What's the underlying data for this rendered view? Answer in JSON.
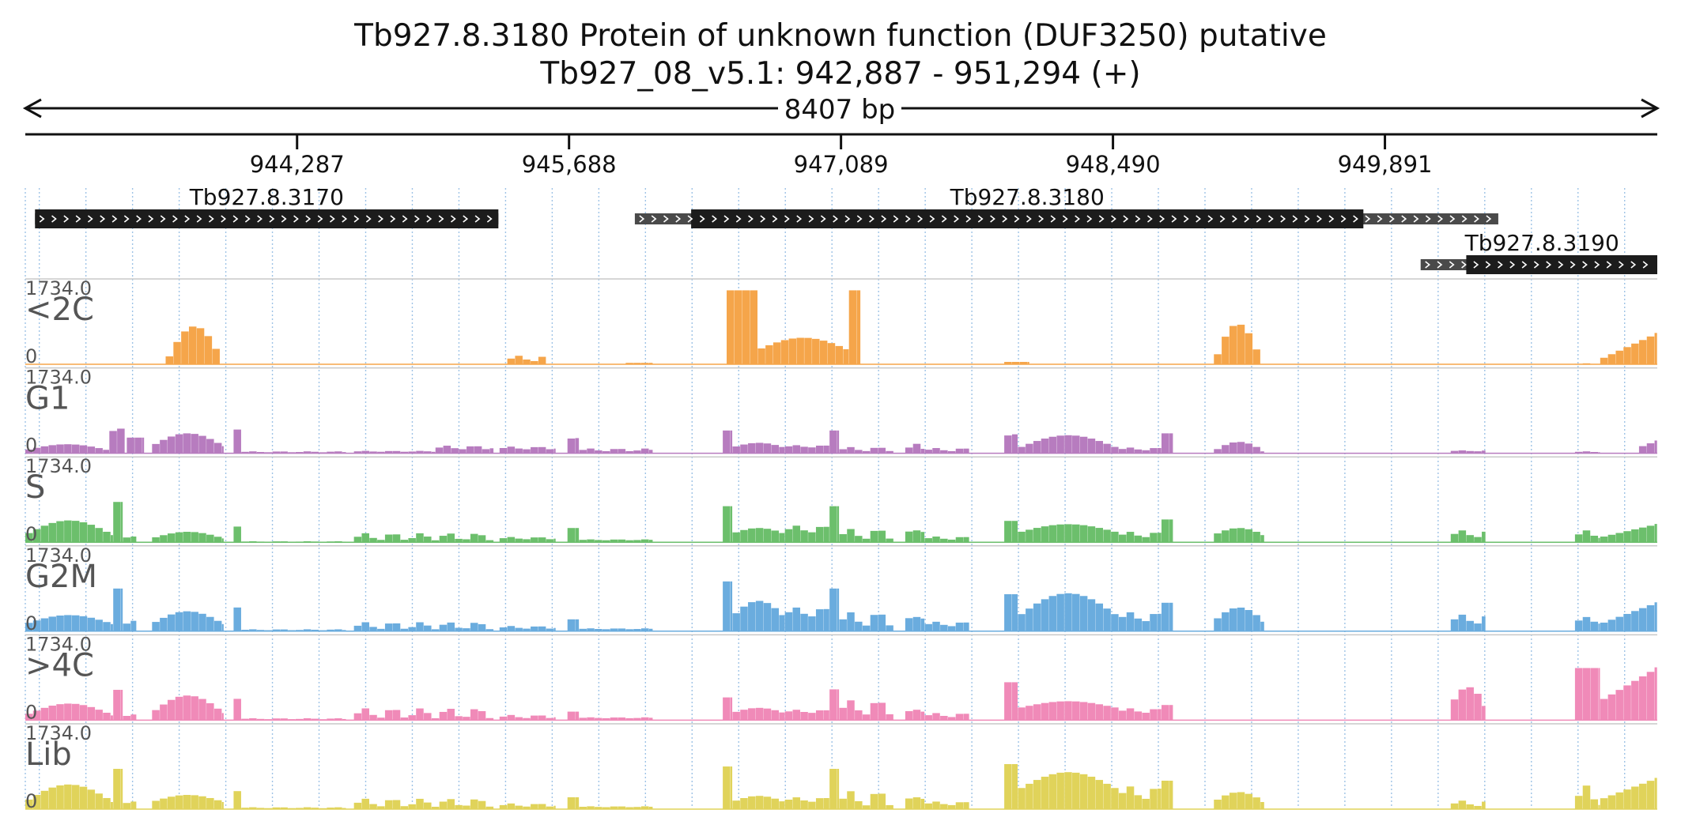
{
  "header": {
    "title": "Tb927.8.3180  Protein of unknown function (DUF3250)  putative",
    "location": "Tb927_08_v5.1: 942,887 - 951,294 (+)",
    "span_label": "8407 bp"
  },
  "ruler": {
    "start": 942887,
    "end": 951294,
    "ticks": [
      {
        "pos": 944287,
        "label": "944,287"
      },
      {
        "pos": 945688,
        "label": "945,688"
      },
      {
        "pos": 947089,
        "label": "947,089"
      },
      {
        "pos": 948490,
        "label": "948,490"
      },
      {
        "pos": 949891,
        "label": "949,891"
      }
    ]
  },
  "genes": [
    {
      "name": "Tb927.8.3170",
      "start": 942937,
      "end": 945324,
      "cds_start": 942937,
      "cds_end": 945324,
      "row": 0,
      "strand": "+"
    },
    {
      "name": "Tb927.8.3180",
      "start": 946027,
      "end": 950475,
      "cds_start": 946317,
      "cds_end": 949780,
      "row": 0,
      "strand": "+"
    },
    {
      "name": "Tb927.8.3190",
      "start": 950075,
      "end": 951294,
      "cds_start": 950310,
      "cds_end": 951294,
      "row": 1,
      "strand": "+"
    }
  ],
  "tracks": [
    {
      "label": "<2C",
      "color": "#f5a54a",
      "max_label": "1734.0",
      "min_label": "0"
    },
    {
      "label": "G1",
      "color": "#b77cbf",
      "max_label": "1734.0",
      "min_label": "0"
    },
    {
      "label": "S",
      "color": "#6cbf6c",
      "max_label": "1734.0",
      "min_label": "0"
    },
    {
      "label": "G2M",
      "color": "#6aacde",
      "max_label": "1734.0",
      "min_label": "0"
    },
    {
      "label": ">4C",
      "color": "#f08ab8",
      "max_label": "1734.0",
      "min_label": "0"
    },
    {
      "label": "Lib",
      "color": "#e0d35a",
      "max_label": "1734.0",
      "min_label": "0"
    }
  ],
  "coverage_max": 1734.0,
  "coverage_regions": [
    [
      [
        943610,
        943910,
        0,
        800,
        "bell"
      ],
      [
        945370,
        945570,
        60,
        180,
        "flat"
      ],
      [
        945980,
        946120,
        30,
        30,
        "flat"
      ],
      [
        946500,
        946660,
        1560,
        1560,
        "flat"
      ],
      [
        946660,
        947130,
        300,
        560,
        "bell"
      ],
      [
        947130,
        947190,
        1560,
        1560,
        "flat"
      ],
      [
        947930,
        948060,
        50,
        50,
        "flat"
      ],
      [
        949010,
        949260,
        0,
        850,
        "bell"
      ],
      [
        950870,
        951000,
        0,
        20,
        "flat"
      ],
      [
        951000,
        951294,
        100,
        650,
        "ramp"
      ]
    ],
    [
      [
        942887,
        943320,
        60,
        190,
        "bell"
      ],
      [
        943320,
        943400,
        420,
        520,
        "flat"
      ],
      [
        943410,
        943500,
        330,
        330,
        "flat"
      ],
      [
        943540,
        943910,
        150,
        420,
        "bell"
      ],
      [
        943960,
        944000,
        500,
        500,
        "flat"
      ],
      [
        944000,
        944540,
        20,
        40,
        "flat"
      ],
      [
        944580,
        945000,
        30,
        50,
        "flat"
      ],
      [
        945000,
        945300,
        80,
        160,
        "flat"
      ],
      [
        945330,
        945620,
        80,
        140,
        "flat"
      ],
      [
        945680,
        945740,
        300,
        320,
        "flat"
      ],
      [
        945740,
        946120,
        40,
        100,
        "flat"
      ],
      [
        946480,
        946530,
        480,
        480,
        "flat"
      ],
      [
        946530,
        946800,
        120,
        220,
        "bell"
      ],
      [
        946800,
        947030,
        120,
        170,
        "flat"
      ],
      [
        947030,
        947080,
        480,
        480,
        "flat"
      ],
      [
        947080,
        947360,
        40,
        130,
        "flat"
      ],
      [
        947420,
        947520,
        40,
        200,
        "flat"
      ],
      [
        947520,
        947750,
        40,
        110,
        "flat"
      ],
      [
        947930,
        948000,
        350,
        400,
        "flat"
      ],
      [
        948000,
        948520,
        100,
        380,
        "bell"
      ],
      [
        948520,
        948740,
        60,
        120,
        "flat"
      ],
      [
        948740,
        948800,
        420,
        420,
        "flat"
      ],
      [
        949010,
        949270,
        40,
        240,
        "bell"
      ],
      [
        950230,
        950410,
        40,
        60,
        "flat"
      ],
      [
        950870,
        951000,
        20,
        40,
        "flat"
      ],
      [
        951200,
        951294,
        120,
        260,
        "ramp"
      ]
    ],
    [
      [
        942887,
        943340,
        150,
        460,
        "bell"
      ],
      [
        943340,
        943390,
        850,
        850,
        "flat"
      ],
      [
        943390,
        943460,
        80,
        120,
        "flat"
      ],
      [
        943540,
        943910,
        80,
        220,
        "bell"
      ],
      [
        943960,
        944000,
        330,
        330,
        "flat"
      ],
      [
        944000,
        944540,
        10,
        20,
        "flat"
      ],
      [
        944580,
        945300,
        40,
        190,
        "flat"
      ],
      [
        945330,
        945620,
        60,
        110,
        "flat"
      ],
      [
        945680,
        945740,
        300,
        300,
        "flat"
      ],
      [
        945740,
        946120,
        40,
        60,
        "flat"
      ],
      [
        946480,
        946530,
        760,
        760,
        "flat"
      ],
      [
        946530,
        946800,
        180,
        300,
        "bell"
      ],
      [
        946800,
        947030,
        200,
        350,
        "flat"
      ],
      [
        947030,
        947080,
        760,
        760,
        "flat"
      ],
      [
        947080,
        947360,
        60,
        280,
        "flat"
      ],
      [
        947420,
        947520,
        200,
        250,
        "flat"
      ],
      [
        947520,
        947750,
        50,
        120,
        "flat"
      ],
      [
        947930,
        948000,
        450,
        450,
        "flat"
      ],
      [
        948000,
        948520,
        200,
        380,
        "bell"
      ],
      [
        948520,
        948740,
        100,
        220,
        "flat"
      ],
      [
        948740,
        948800,
        480,
        480,
        "flat"
      ],
      [
        949010,
        949270,
        150,
        300,
        "bell"
      ],
      [
        950230,
        950410,
        100,
        250,
        "flat"
      ],
      [
        950870,
        951000,
        80,
        250,
        "flat"
      ],
      [
        951000,
        951294,
        100,
        380,
        "ramp"
      ]
    ],
    [
      [
        942887,
        943340,
        150,
        340,
        "bell"
      ],
      [
        943340,
        943390,
        900,
        900,
        "flat"
      ],
      [
        943390,
        943460,
        100,
        220,
        "flat"
      ],
      [
        943540,
        943910,
        150,
        420,
        "bell"
      ],
      [
        943960,
        944000,
        500,
        500,
        "flat"
      ],
      [
        944000,
        944540,
        20,
        40,
        "flat"
      ],
      [
        944580,
        945300,
        40,
        190,
        "flat"
      ],
      [
        945330,
        945620,
        50,
        110,
        "flat"
      ],
      [
        945680,
        945740,
        250,
        250,
        "flat"
      ],
      [
        945740,
        946120,
        40,
        60,
        "flat"
      ],
      [
        946480,
        946530,
        1050,
        1050,
        "flat"
      ],
      [
        946530,
        946800,
        300,
        640,
        "bell"
      ],
      [
        946800,
        947030,
        300,
        500,
        "flat"
      ],
      [
        947030,
        947080,
        900,
        900,
        "flat"
      ],
      [
        947080,
        947360,
        100,
        400,
        "flat"
      ],
      [
        947420,
        947520,
        250,
        300,
        "flat"
      ],
      [
        947520,
        947750,
        100,
        200,
        "flat"
      ],
      [
        947930,
        948000,
        780,
        780,
        "flat"
      ],
      [
        948000,
        948520,
        300,
        800,
        "bell"
      ],
      [
        948520,
        948740,
        200,
        400,
        "flat"
      ],
      [
        948740,
        948800,
        600,
        600,
        "flat"
      ],
      [
        949010,
        949270,
        200,
        500,
        "bell"
      ],
      [
        950230,
        950410,
        150,
        350,
        "flat"
      ],
      [
        950870,
        951000,
        150,
        300,
        "flat"
      ],
      [
        951000,
        951294,
        150,
        600,
        "ramp"
      ]
    ],
    [
      [
        942887,
        943340,
        100,
        350,
        "bell"
      ],
      [
        943340,
        943390,
        640,
        640,
        "flat"
      ],
      [
        943390,
        943460,
        60,
        120,
        "flat"
      ],
      [
        943540,
        943910,
        150,
        520,
        "bell"
      ],
      [
        943960,
        944000,
        450,
        450,
        "flat"
      ],
      [
        944000,
        944540,
        20,
        40,
        "flat"
      ],
      [
        944580,
        945300,
        40,
        250,
        "flat"
      ],
      [
        945330,
        945620,
        40,
        110,
        "flat"
      ],
      [
        945680,
        945740,
        180,
        180,
        "flat"
      ],
      [
        945740,
        946120,
        40,
        60,
        "flat"
      ],
      [
        946480,
        946530,
        480,
        480,
        "flat"
      ],
      [
        946530,
        946800,
        150,
        260,
        "bell"
      ],
      [
        946800,
        947030,
        150,
        220,
        "flat"
      ],
      [
        947030,
        947080,
        650,
        650,
        "flat"
      ],
      [
        947080,
        947360,
        100,
        420,
        "flat"
      ],
      [
        947420,
        947520,
        160,
        220,
        "flat"
      ],
      [
        947520,
        947750,
        60,
        150,
        "flat"
      ],
      [
        947930,
        948000,
        800,
        800,
        "flat"
      ],
      [
        948000,
        948520,
        250,
        400,
        "bell"
      ],
      [
        948520,
        948740,
        150,
        250,
        "flat"
      ],
      [
        948740,
        948800,
        320,
        320,
        "flat"
      ],
      [
        950230,
        950410,
        300,
        700,
        "bell"
      ],
      [
        951000,
        951294,
        400,
        1100,
        "ramp"
      ],
      [
        950870,
        951000,
        1100,
        1100,
        "flat"
      ]
    ],
    [
      [
        942887,
        943340,
        150,
        520,
        "bell"
      ],
      [
        943340,
        943390,
        850,
        850,
        "flat"
      ],
      [
        943390,
        943460,
        100,
        160,
        "flat"
      ],
      [
        943540,
        943910,
        150,
        300,
        "bell"
      ],
      [
        943960,
        944000,
        380,
        380,
        "flat"
      ],
      [
        944000,
        944540,
        20,
        40,
        "flat"
      ],
      [
        944580,
        945300,
        50,
        220,
        "flat"
      ],
      [
        945330,
        945620,
        50,
        120,
        "flat"
      ],
      [
        945680,
        945740,
        250,
        250,
        "flat"
      ],
      [
        945740,
        946120,
        40,
        60,
        "flat"
      ],
      [
        946480,
        946530,
        900,
        900,
        "flat"
      ],
      [
        946530,
        946800,
        150,
        280,
        "bell"
      ],
      [
        946800,
        947030,
        150,
        250,
        "flat"
      ],
      [
        947030,
        947080,
        850,
        850,
        "flat"
      ],
      [
        947080,
        947360,
        60,
        380,
        "flat"
      ],
      [
        947420,
        947520,
        200,
        250,
        "flat"
      ],
      [
        947520,
        947750,
        80,
        160,
        "flat"
      ],
      [
        947930,
        948000,
        950,
        950,
        "flat"
      ],
      [
        948000,
        948520,
        400,
        780,
        "bell"
      ],
      [
        948520,
        948740,
        200,
        480,
        "flat"
      ],
      [
        948740,
        948800,
        600,
        600,
        "flat"
      ],
      [
        949010,
        949270,
        150,
        360,
        "bell"
      ],
      [
        950230,
        950410,
        60,
        180,
        "flat"
      ],
      [
        950870,
        951000,
        60,
        500,
        "flat"
      ],
      [
        951000,
        951294,
        200,
        650,
        "ramp"
      ]
    ]
  ]
}
